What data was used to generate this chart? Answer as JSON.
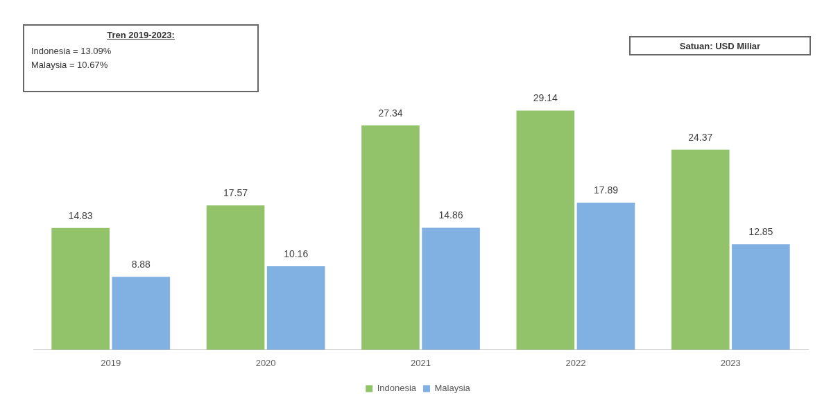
{
  "chart_data": {
    "type": "bar",
    "categories": [
      "2019",
      "2020",
      "2021",
      "2022",
      "2023"
    ],
    "series": [
      {
        "name": "Indonesia",
        "color": "#92c36a",
        "values": [
          14.83,
          17.57,
          27.34,
          29.14,
          24.37
        ]
      },
      {
        "name": "Malaysia",
        "color": "#80b1e2",
        "values": [
          8.88,
          10.16,
          14.86,
          17.89,
          12.85
        ]
      }
    ],
    "data_labels": true,
    "legend": "bottom",
    "grid": false,
    "relative": false,
    "annotations": [
      "Tren 2019-2023:",
      "Indonesia = 13.09%",
      "Malaysia = 10.67%",
      "Satuan: USD Miliar"
    ]
  }
}
